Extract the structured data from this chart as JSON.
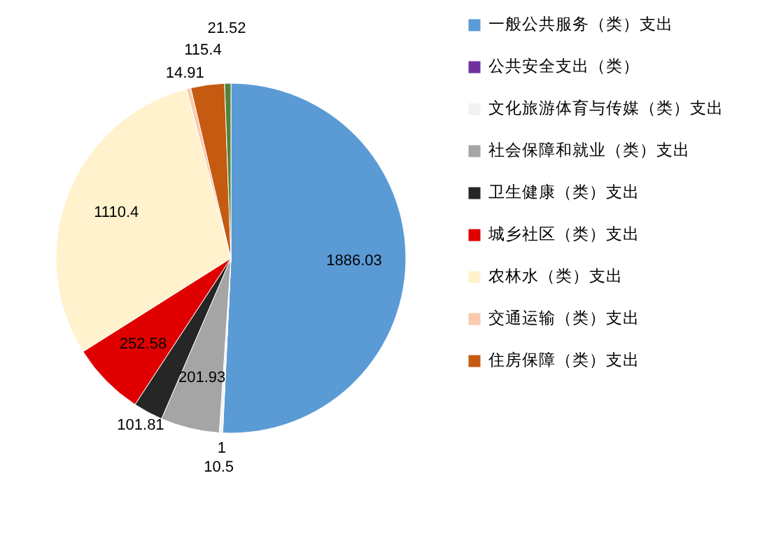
{
  "chart_data": {
    "type": "pie",
    "categories": [
      "一般公共服务（类）支出",
      "公共安全支出（类）",
      "文化旅游体育与传媒（类）支出",
      "社会保障和就业（类）支出",
      "卫生健康（类）支出",
      "城乡社区（类）支出",
      "农林水（类）支出",
      "交通运输（类）支出",
      "住房保障（类）支出",
      null
    ],
    "values": [
      1886.03,
      1,
      10.5,
      201.93,
      101.81,
      252.58,
      1110.4,
      14.91,
      115.4,
      21.52
    ],
    "colors": [
      "#5b9bd5",
      "#7030a0",
      "#f2f2f2",
      "#a5a5a5",
      "#262626",
      "#e00000",
      "#fff2cc",
      "#f8cbad",
      "#c55a11",
      "#548235"
    ],
    "data_labels": true,
    "legend": "right"
  }
}
